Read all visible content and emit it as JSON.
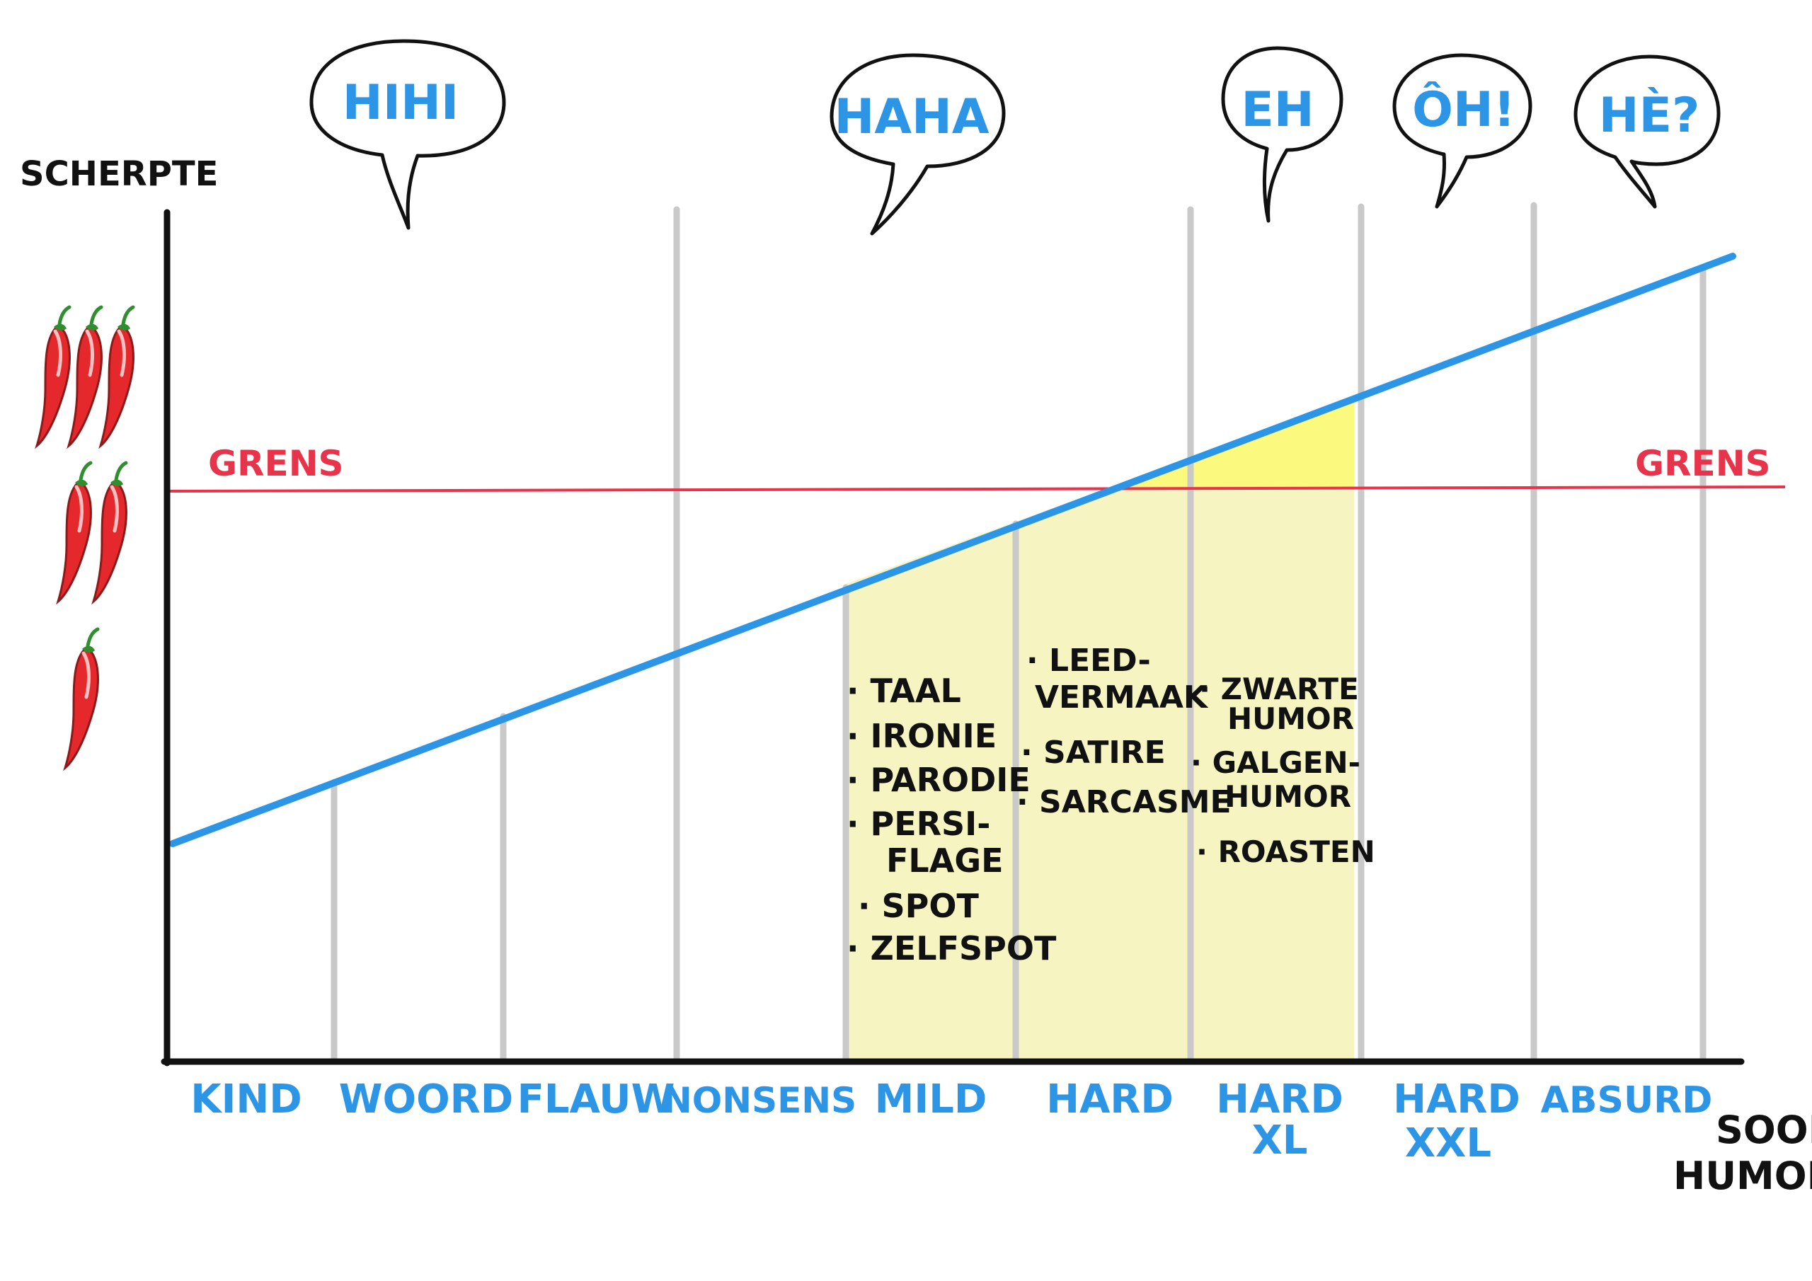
{
  "axes": {
    "y_label": "SCHERPTE",
    "x_label_line1": "SOORT",
    "x_label_line2": "HUMOR"
  },
  "boundary": {
    "label_left": "GRENS",
    "label_right": "GRENS",
    "color": "#e8344b"
  },
  "trend_line_color": "#2d95e6",
  "highlight_color": "#f6f5c2",
  "over_boundary_color": "#fbfa7e",
  "spiciness_icons": [
    "three-chili-peppers-icon",
    "two-chili-peppers-icon",
    "one-chili-pepper-icon"
  ],
  "categories": [
    {
      "line1": "KIND",
      "line2": ""
    },
    {
      "line1": "WOORD",
      "line2": ""
    },
    {
      "line1": "FLAUW",
      "line2": ""
    },
    {
      "line1": "NONSENS",
      "line2": ""
    },
    {
      "line1": "MILD",
      "line2": ""
    },
    {
      "line1": "HARD",
      "line2": ""
    },
    {
      "line1": "HARD",
      "line2": "XL"
    },
    {
      "line1": "HARD",
      "line2": "XXL"
    },
    {
      "line1": "ABSURD",
      "line2": ""
    }
  ],
  "bubbles": [
    {
      "text": "HIHI"
    },
    {
      "text": "HAHA"
    },
    {
      "text": "EH"
    },
    {
      "text": "ÔH!"
    },
    {
      "text": "HÈ?"
    }
  ],
  "lists": {
    "mild": [
      "· TAAL",
      "· IRONIE",
      "· PARODIE",
      "· PERSI-",
      "FLAGE",
      "· SPOT",
      "· ZELFSPOT"
    ],
    "hard": [
      "· LEED-",
      "VERMAAK",
      "· SATIRE",
      "· SARCASME"
    ],
    "hard_xl": [
      "· ZWARTE",
      "HUMOR",
      "· GALGEN-",
      "HUMOR",
      "· ROASTEN"
    ]
  }
}
